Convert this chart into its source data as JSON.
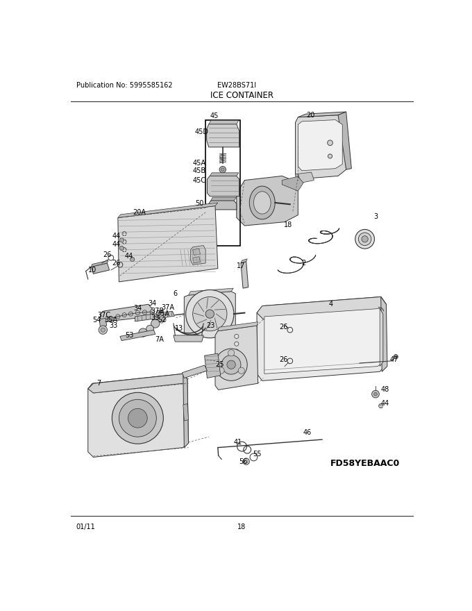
{
  "title": "ICE CONTAINER",
  "pub_no": "Publication No: 5995585162",
  "model": "EW28BS71I",
  "date": "01/11",
  "page": "18",
  "diagram_code": "FD58YEBAAC0",
  "bg_color": "#ffffff",
  "lc": "#333333",
  "tc": "#000000"
}
